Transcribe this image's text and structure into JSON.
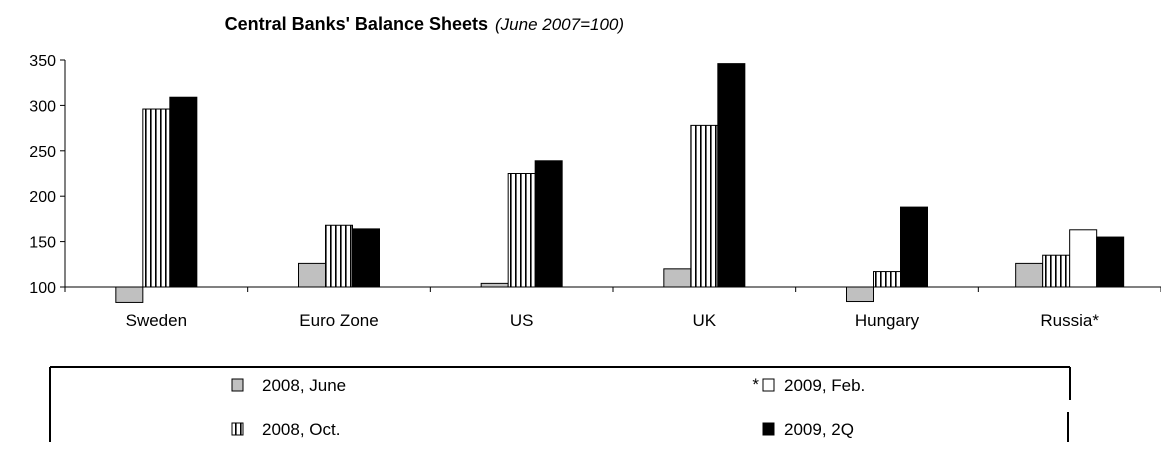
{
  "chart_data": {
    "type": "bar",
    "title": "Central Banks' Balance Sheets",
    "subtitle": "(June 2007=100)",
    "xlabel": "",
    "ylabel": "",
    "ylim": [
      100,
      350
    ],
    "y_ticks": [
      100,
      150,
      200,
      250,
      300,
      350
    ],
    "baseline": 100,
    "grid": false,
    "legend_position": "bottom",
    "categories": [
      "Sweden",
      "Euro Zone",
      "US",
      "UK",
      "Hungary",
      "Russia*"
    ],
    "series": [
      {
        "name": "2008, June",
        "key": "june2008",
        "pattern": "gray",
        "values": [
          83,
          126,
          104,
          120,
          84,
          126
        ]
      },
      {
        "name": "2008, Oct.",
        "key": "oct2008",
        "pattern": "vstripe",
        "values": [
          296,
          168,
          225,
          278,
          117,
          135
        ]
      },
      {
        "name": "2009, Feb.",
        "key": "feb2009",
        "pattern": "white",
        "legend_prefix": "*",
        "values": [
          null,
          null,
          null,
          null,
          null,
          163
        ]
      },
      {
        "name": "2009, 2Q",
        "key": "q2_2009",
        "pattern": "black",
        "values": [
          309,
          164,
          239,
          346,
          188,
          155
        ]
      }
    ],
    "legend_rows": [
      [
        "june2008",
        "feb2009"
      ],
      [
        "oct2008",
        "q2_2009"
      ]
    ],
    "colors": {
      "gray": "#c0c0c0",
      "black": "#000000",
      "white": "#ffffff",
      "axis": "#000000"
    }
  }
}
